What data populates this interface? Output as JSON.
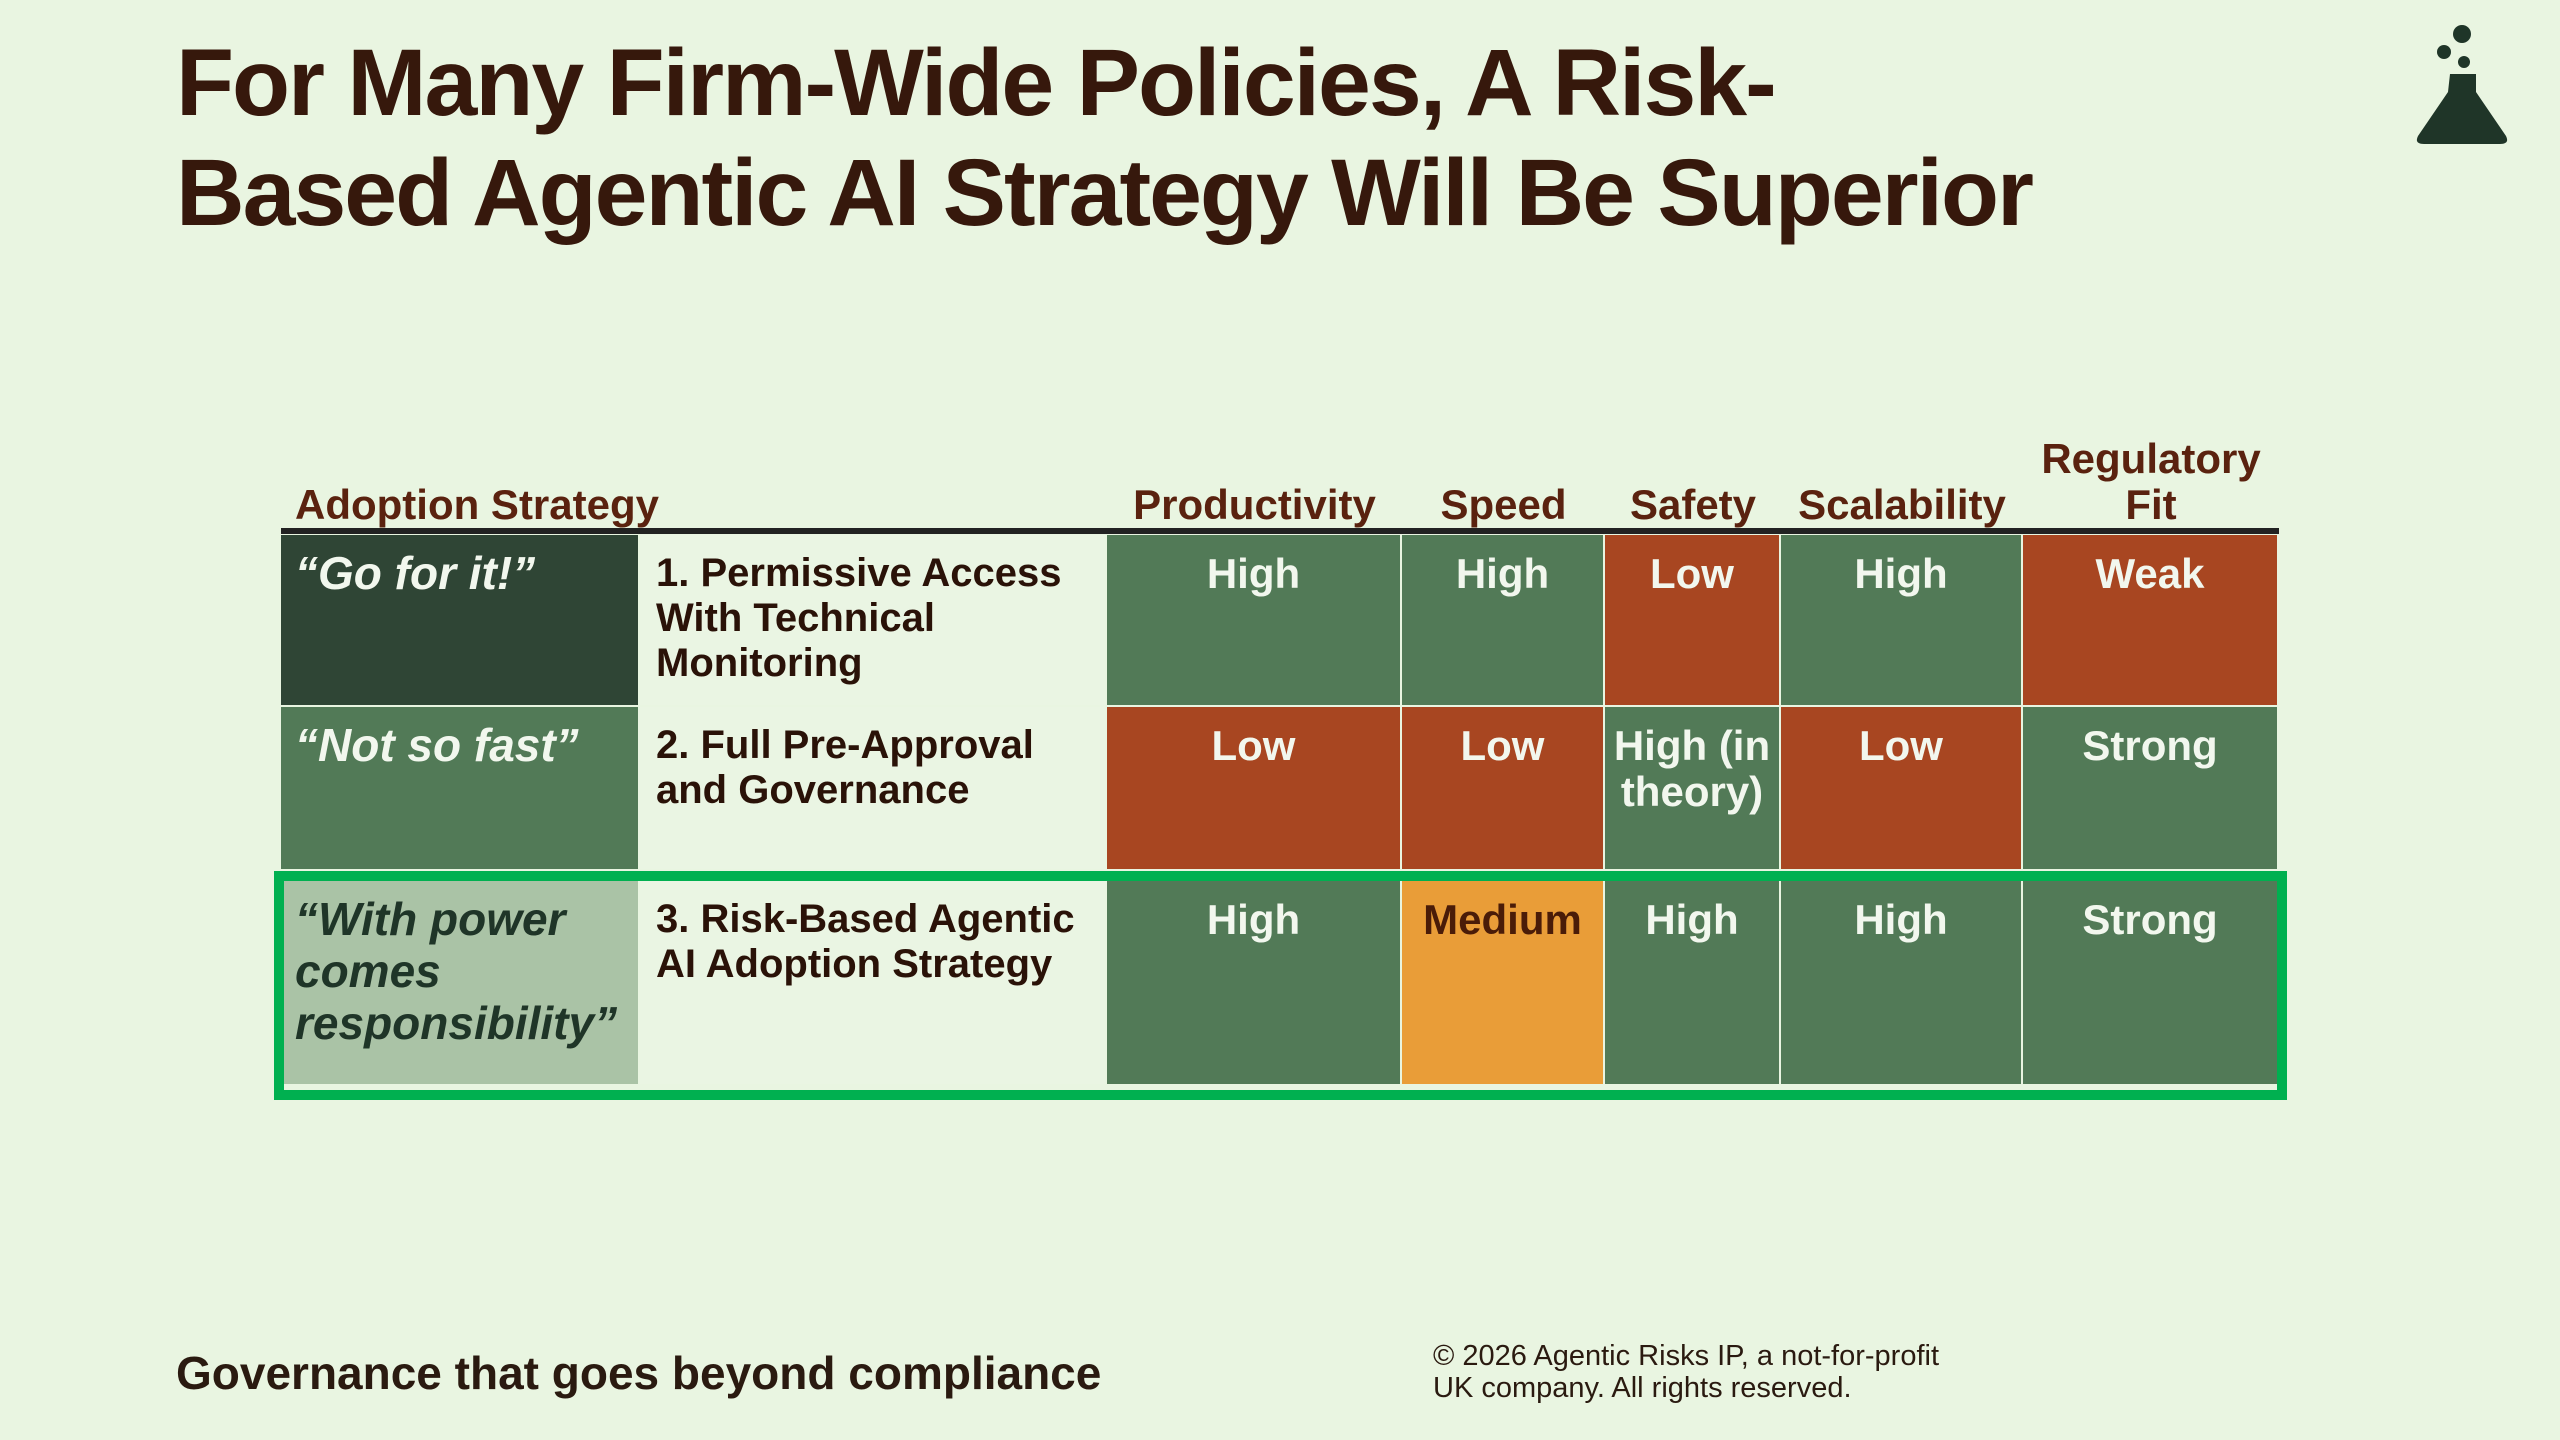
{
  "header": {
    "title_lines": [
      "For Many Firm-Wide Policies, A Risk-",
      "Based Agentic AI Strategy Will Be Superior"
    ]
  },
  "table": {
    "columns": [
      "Adoption Strategy",
      "Productivity",
      "Speed",
      "Safety",
      "Scalability",
      "Regulatory Fit"
    ],
    "rows": [
      {
        "motto": "“Go for it!”",
        "motto_color": "#2f4535",
        "strategy": "1. Permissive Access With Technical Monitoring",
        "cells": [
          {
            "text": "High",
            "color": "#527a57"
          },
          {
            "text": "High",
            "color": "#527a57"
          },
          {
            "text": "Low",
            "color": "#a84621"
          },
          {
            "text": "High",
            "color": "#527a57"
          },
          {
            "text": "Weak",
            "color": "#a84621"
          }
        ]
      },
      {
        "motto": "“Not so fast”",
        "motto_color": "#527a57",
        "strategy": "2. Full Pre-Approval and Governance",
        "cells": [
          {
            "text": "Low",
            "color": "#a84621"
          },
          {
            "text": "Low",
            "color": "#a84621"
          },
          {
            "text": "High (in theory)",
            "color": "#527a57"
          },
          {
            "text": "Low",
            "color": "#a84621"
          },
          {
            "text": "Strong",
            "color": "#527a57"
          }
        ]
      },
      {
        "motto": "“With power comes responsibility”",
        "motto_color": "#aac3a6",
        "strategy": "3. Risk-Based Agentic AI Adoption Strategy",
        "cells": [
          {
            "text": "High",
            "color": "#527a57"
          },
          {
            "text": "Medium",
            "color": "#e99d38"
          },
          {
            "text": "High",
            "color": "#527a57"
          },
          {
            "text": "High",
            "color": "#527a57"
          },
          {
            "text": "Strong",
            "color": "#527a57"
          }
        ]
      }
    ]
  },
  "footer": {
    "tagline": "Governance that goes beyond compliance",
    "copyright_lines": [
      "© 2026 Agentic Risks IP, a not-for-profit",
      "UK company. All rights reserved."
    ]
  }
}
